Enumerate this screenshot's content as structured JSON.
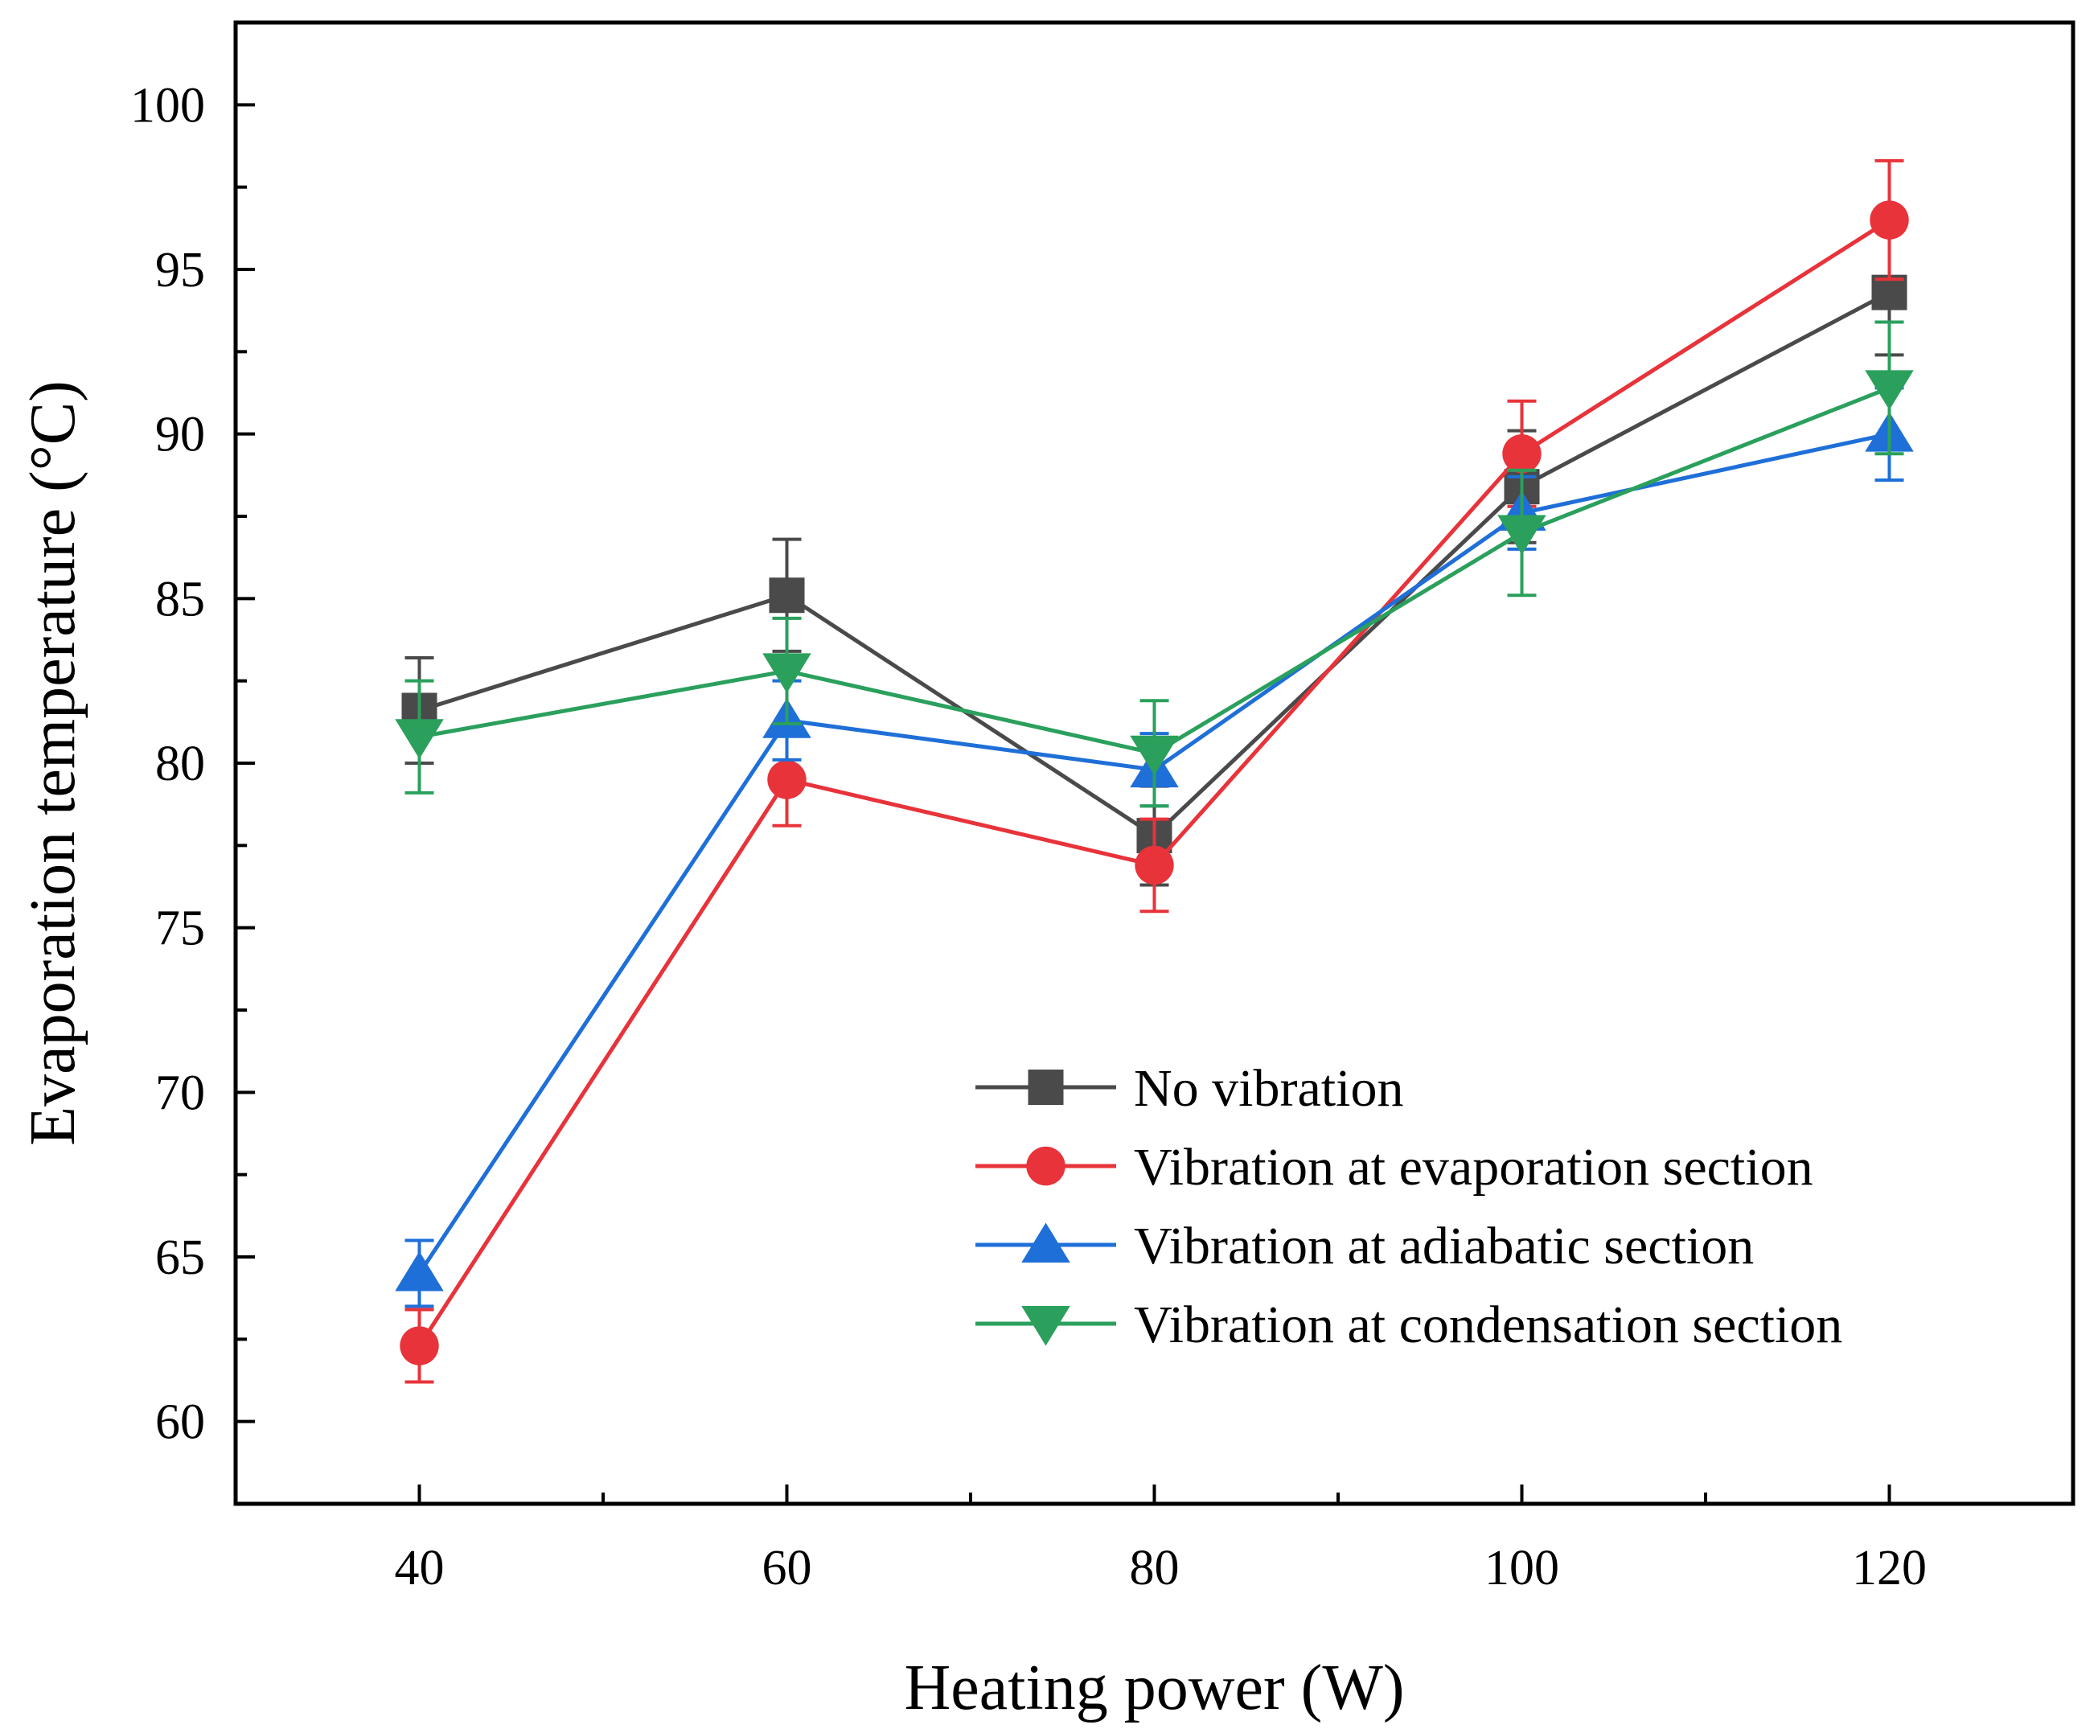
{
  "chart_data": {
    "type": "line",
    "title": "",
    "xlabel": "Heating power (W)",
    "ylabel": "Evaporation temperature (°C)",
    "xlim": [
      30,
      130
    ],
    "ylim": [
      57.5,
      102.5
    ],
    "x": [
      40,
      60,
      80,
      100,
      120
    ],
    "x_ticks": [
      40,
      60,
      80,
      100,
      120
    ],
    "y_ticks": [
      60,
      65,
      70,
      75,
      80,
      85,
      90,
      95,
      100
    ],
    "legend_position": "lower-right",
    "series": [
      {
        "name": "No vibration",
        "color": "#4a4a4a",
        "marker": "square",
        "values": [
          81.6,
          85.1,
          77.8,
          88.4,
          94.3
        ],
        "errors": [
          1.6,
          1.7,
          1.5,
          1.7,
          1.9
        ]
      },
      {
        "name": "Vibration at evaporation section",
        "color": "#e8333a",
        "marker": "circle",
        "values": [
          62.3,
          79.5,
          76.9,
          89.4,
          96.5
        ],
        "errors": [
          1.1,
          1.4,
          1.4,
          1.6,
          1.8
        ]
      },
      {
        "name": "Vibration at adiabatic section",
        "color": "#1f6fd8",
        "marker": "triangle-up",
        "values": [
          64.5,
          81.3,
          79.8,
          87.6,
          90.0
        ],
        "errors": [
          1.0,
          1.2,
          1.1,
          1.1,
          1.4
        ]
      },
      {
        "name": "Vibration at condensation section",
        "color": "#2aa05c",
        "marker": "triangle-down",
        "values": [
          80.8,
          82.8,
          80.3,
          87.0,
          91.4
        ],
        "errors": [
          1.7,
          1.6,
          1.6,
          1.9,
          2.0
        ]
      }
    ]
  }
}
